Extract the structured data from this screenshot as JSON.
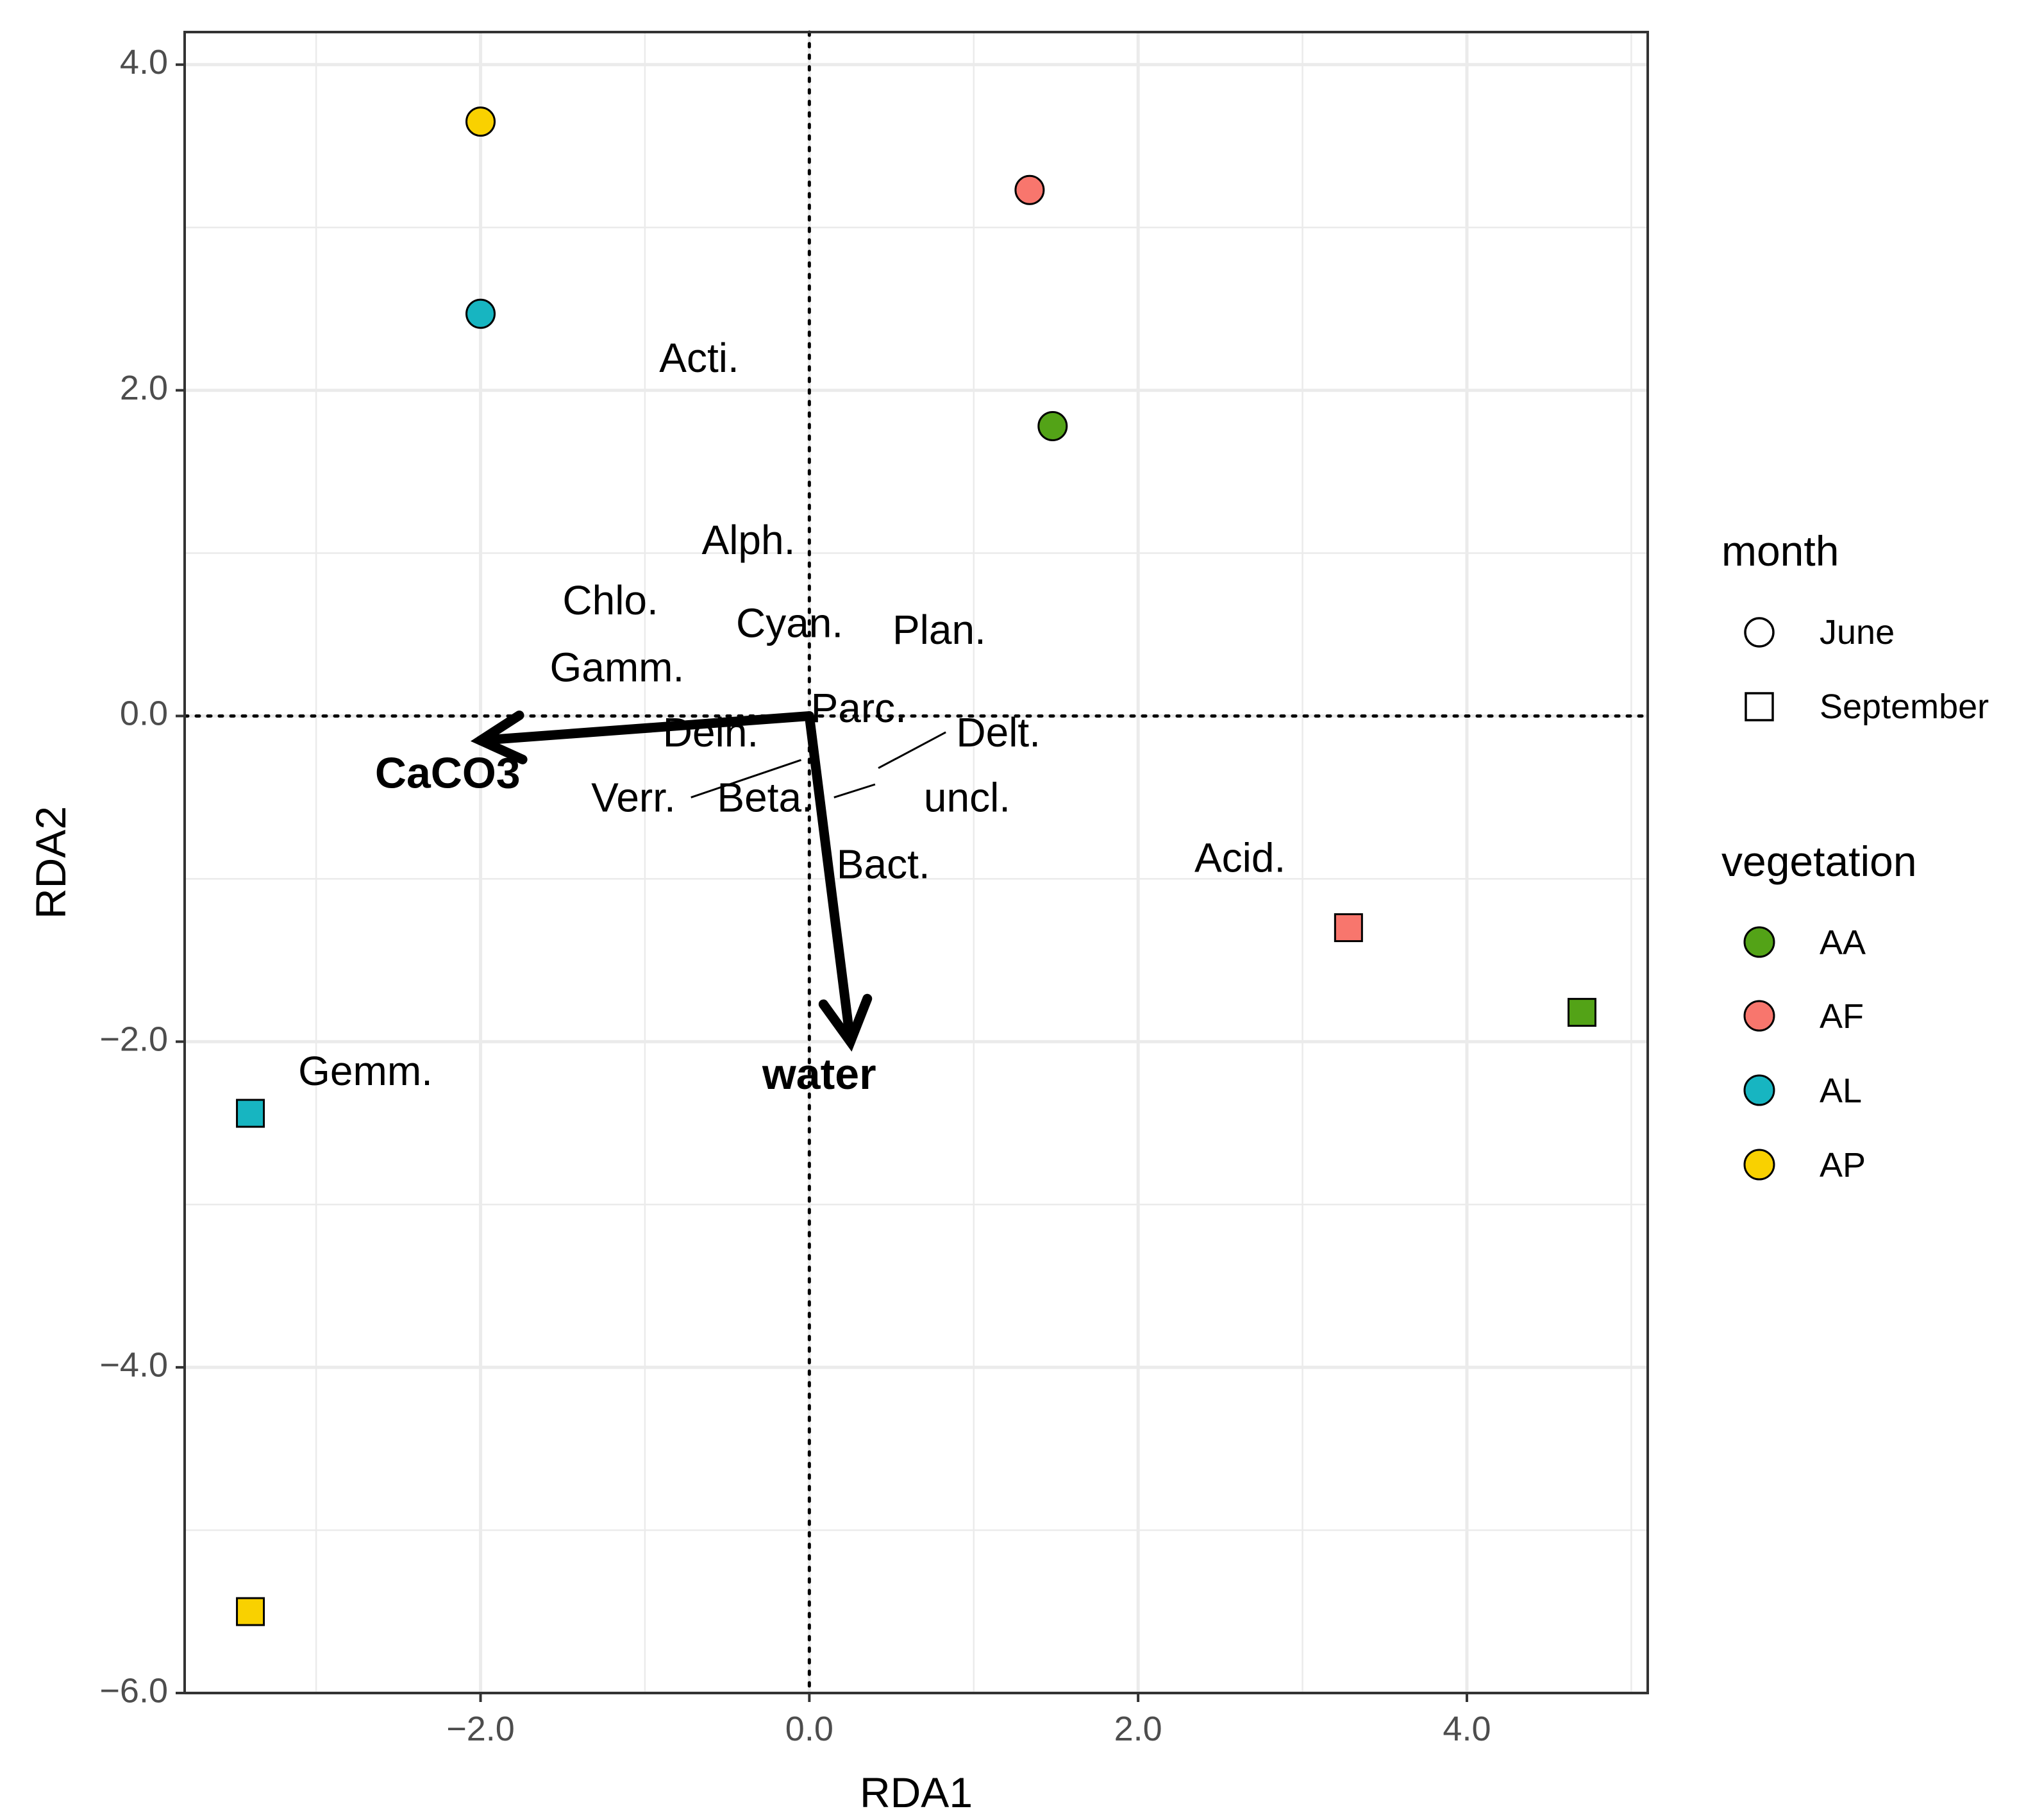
{
  "chart_data": {
    "type": "scatter",
    "title": "",
    "xlabel": "RDA1",
    "ylabel": "RDA2",
    "xlim": [
      -3.8,
      5.1
    ],
    "ylim": [
      -6.0,
      4.2
    ],
    "x_ticks": [
      -2.0,
      0.0,
      2.0,
      4.0
    ],
    "y_ticks": [
      -6.0,
      -4.0,
      -2.0,
      0.0,
      2.0,
      4.0
    ],
    "x_tick_labels": [
      "−2.0",
      "0.0",
      "2.0",
      "4.0"
    ],
    "y_tick_labels": [
      "−6.0",
      "−4.0",
      "−2.0",
      "0.0",
      "2.0",
      "4.0"
    ],
    "grid": true,
    "reference_lines": {
      "x": 0.0,
      "y": 0.0,
      "style": "dotted"
    },
    "colors": {
      "AA": "#53a317",
      "AF": "#f8766d",
      "AL": "#17b5c1",
      "AP": "#f9d100"
    },
    "points": [
      {
        "vegetation": "AP",
        "month": "June",
        "x": -2.0,
        "y": 3.65
      },
      {
        "vegetation": "AL",
        "month": "June",
        "x": -2.0,
        "y": 2.47
      },
      {
        "vegetation": "AF",
        "month": "June",
        "x": 1.34,
        "y": 3.23
      },
      {
        "vegetation": "AA",
        "month": "June",
        "x": 1.48,
        "y": 1.78
      },
      {
        "vegetation": "AF",
        "month": "September",
        "x": 3.28,
        "y": -1.3
      },
      {
        "vegetation": "AA",
        "month": "September",
        "x": 4.7,
        "y": -1.82
      },
      {
        "vegetation": "AL",
        "month": "September",
        "x": -3.4,
        "y": -2.44
      },
      {
        "vegetation": "AP",
        "month": "September",
        "x": -3.4,
        "y": -5.5
      }
    ],
    "vectors": [
      {
        "label": "CaCO3",
        "x": -2.0,
        "y": -0.15,
        "label_x": -2.2,
        "label_y": -0.37
      },
      {
        "label": "water",
        "x": 0.25,
        "y": -2.0,
        "label_x": 0.06,
        "label_y": -2.22
      }
    ],
    "taxa_labels": [
      {
        "label": "Acti.",
        "x": -0.67,
        "y": 2.18
      },
      {
        "label": "Alph.",
        "x": -0.37,
        "y": 1.06
      },
      {
        "label": "Chlo.",
        "x": -1.21,
        "y": 0.69
      },
      {
        "label": "Cyan.",
        "x": -0.12,
        "y": 0.55
      },
      {
        "label": "Plan.",
        "x": 0.79,
        "y": 0.51
      },
      {
        "label": "Gamm.",
        "x": -1.17,
        "y": 0.28
      },
      {
        "label": "Parc.",
        "x": 0.3,
        "y": 0.03
      },
      {
        "label": "Dein.",
        "x": -0.6,
        "y": -0.12
      },
      {
        "label": "Delt.",
        "x": 1.15,
        "y": -0.12
      },
      {
        "label": "Verr.",
        "x": -1.07,
        "y": -0.52
      },
      {
        "label": "Beta.",
        "x": -0.27,
        "y": -0.52
      },
      {
        "label": "uncl.",
        "x": 0.96,
        "y": -0.52
      },
      {
        "label": "Bact.",
        "x": 0.45,
        "y": -0.93
      },
      {
        "label": "Acid.",
        "x": 2.62,
        "y": -0.89
      },
      {
        "label": "Gemm.",
        "x": -2.7,
        "y": -2.2
      }
    ],
    "leader_lines": [
      {
        "x1": -0.72,
        "y1": -0.5,
        "x2": -0.05,
        "y2": -0.27
      },
      {
        "x1": 0.15,
        "y1": -0.5,
        "x2": 0.4,
        "y2": -0.42
      },
      {
        "x1": 0.42,
        "y1": -0.32,
        "x2": 0.83,
        "y2": -0.1
      }
    ],
    "legend": {
      "position": "right",
      "month_title": "month",
      "month_entries": [
        {
          "label": "June",
          "shape": "circle"
        },
        {
          "label": "September",
          "shape": "square"
        }
      ],
      "vegetation_title": "vegetation",
      "vegetation_entries": [
        {
          "label": "AA",
          "color": "#53a317"
        },
        {
          "label": "AF",
          "color": "#f8766d"
        },
        {
          "label": "AL",
          "color": "#17b5c1"
        },
        {
          "label": "AP",
          "color": "#f9d100"
        }
      ]
    }
  }
}
